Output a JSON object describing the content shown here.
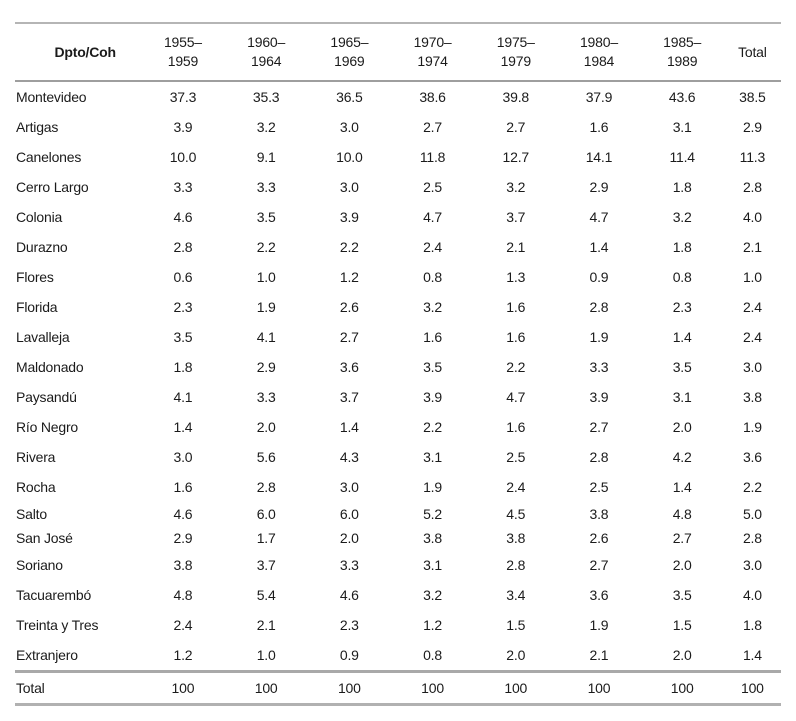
{
  "table": {
    "header": {
      "dpto_coh": "Dpto/Coh",
      "total_label": "Total",
      "columns": [
        {
          "line1": "1955–",
          "line2": "1959"
        },
        {
          "line1": "1960–",
          "line2": "1964"
        },
        {
          "line1": "1965–",
          "line2": "1969"
        },
        {
          "line1": "1970–",
          "line2": "1974"
        },
        {
          "line1": "1975–",
          "line2": "1979"
        },
        {
          "line1": "1980–",
          "line2": "1984"
        },
        {
          "line1": "1985–",
          "line2": "1989"
        }
      ]
    },
    "rows": [
      {
        "label": "Montevideo",
        "values": [
          "37.3",
          "35.3",
          "36.5",
          "38.6",
          "39.8",
          "37.9",
          "43.6",
          "38.5"
        ]
      },
      {
        "label": "Artigas",
        "values": [
          "3.9",
          "3.2",
          "3.0",
          "2.7",
          "2.7",
          "1.6",
          "3.1",
          "2.9"
        ]
      },
      {
        "label": "Canelones",
        "values": [
          "10.0",
          "9.1",
          "10.0",
          "11.8",
          "12.7",
          "14.1",
          "11.4",
          "11.3"
        ]
      },
      {
        "label": "Cerro Largo",
        "values": [
          "3.3",
          "3.3",
          "3.0",
          "2.5",
          "3.2",
          "2.9",
          "1.8",
          "2.8"
        ]
      },
      {
        "label": "Colonia",
        "values": [
          "4.6",
          "3.5",
          "3.9",
          "4.7",
          "3.7",
          "4.7",
          "3.2",
          "4.0"
        ]
      },
      {
        "label": "Durazno",
        "values": [
          "2.8",
          "2.2",
          "2.2",
          "2.4",
          "2.1",
          "1.4",
          "1.8",
          "2.1"
        ]
      },
      {
        "label": "Flores",
        "values": [
          "0.6",
          "1.0",
          "1.2",
          "0.8",
          "1.3",
          "0.9",
          "0.8",
          "1.0"
        ]
      },
      {
        "label": "Florida",
        "values": [
          "2.3",
          "1.9",
          "2.6",
          "3.2",
          "1.6",
          "2.8",
          "2.3",
          "2.4"
        ]
      },
      {
        "label": "Lavalleja",
        "values": [
          "3.5",
          "4.1",
          "2.7",
          "1.6",
          "1.6",
          "1.9",
          "1.4",
          "2.4"
        ]
      },
      {
        "label": "Maldonado",
        "values": [
          "1.8",
          "2.9",
          "3.6",
          "3.5",
          "2.2",
          "3.3",
          "3.5",
          "3.0"
        ]
      },
      {
        "label": "Paysandú",
        "values": [
          "4.1",
          "3.3",
          "3.7",
          "3.9",
          "4.7",
          "3.9",
          "3.1",
          "3.8"
        ]
      },
      {
        "label": "Río Negro",
        "values": [
          "1.4",
          "2.0",
          "1.4",
          "2.2",
          "1.6",
          "2.7",
          "2.0",
          "1.9"
        ]
      },
      {
        "label": "Rivera",
        "values": [
          "3.0",
          "5.6",
          "4.3",
          "3.1",
          "2.5",
          "2.8",
          "4.2",
          "3.6"
        ]
      },
      {
        "label": "Rocha",
        "values": [
          "1.6",
          "2.8",
          "3.0",
          "1.9",
          "2.4",
          "2.5",
          "1.4",
          "2.2"
        ]
      },
      {
        "label": "Salto",
        "tight": true,
        "values": [
          "4.6",
          "6.0",
          "6.0",
          "5.2",
          "4.5",
          "3.8",
          "4.8",
          "5.0"
        ]
      },
      {
        "label": "San José",
        "tight": true,
        "values": [
          "2.9",
          "1.7",
          "2.0",
          "3.8",
          "3.8",
          "2.6",
          "2.7",
          "2.8"
        ]
      },
      {
        "label": "Soriano",
        "values": [
          "3.8",
          "3.7",
          "3.3",
          "3.1",
          "2.8",
          "2.7",
          "2.0",
          "3.0"
        ]
      },
      {
        "label": "Tacuarembó",
        "values": [
          "4.8",
          "5.4",
          "4.6",
          "3.2",
          "3.4",
          "3.6",
          "3.5",
          "4.0"
        ]
      },
      {
        "label": "Treinta y Tres",
        "values": [
          "2.4",
          "2.1",
          "2.3",
          "1.2",
          "1.5",
          "1.9",
          "1.5",
          "1.8"
        ]
      },
      {
        "label": "Extranjero",
        "values": [
          "1.2",
          "1.0",
          "0.9",
          "0.8",
          "2.0",
          "2.1",
          "2.0",
          "1.4"
        ]
      }
    ],
    "footer": {
      "label": "Total",
      "values": [
        "100",
        "100",
        "100",
        "100",
        "100",
        "100",
        "100",
        "100"
      ]
    }
  },
  "colors": {
    "rule_light": "#b5b5b5",
    "rule_medium": "#9e9e9e",
    "text": "#1b1b1b",
    "background": "#ffffff"
  }
}
